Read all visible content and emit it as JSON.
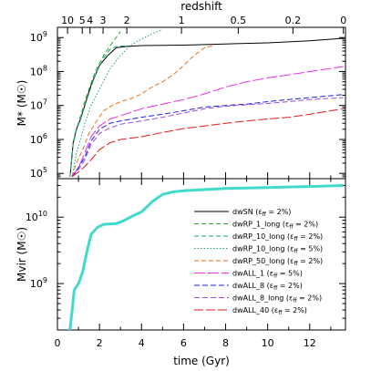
{
  "chart_data": [
    {
      "type": "line",
      "panel": "top",
      "ylabel": "M* (M☉)",
      "yscale": "log",
      "xlim": [
        0,
        13.7
      ],
      "ylim": [
        70000,
        2000000000
      ],
      "yticks": [
        {
          "value": 100000,
          "label": "10",
          "exp": "5"
        },
        {
          "value": 1000000,
          "label": "10",
          "exp": "6"
        },
        {
          "value": 10000000,
          "label": "10",
          "exp": "7"
        },
        {
          "value": 100000000,
          "label": "10",
          "exp": "8"
        },
        {
          "value": 1000000000,
          "label": "10",
          "exp": "9"
        }
      ],
      "top_axis": {
        "label": "redshift",
        "ticks": [
          {
            "label": "10",
            "time": 0.48
          },
          {
            "label": "5",
            "time": 1.18
          },
          {
            "label": "4",
            "time": 1.55
          },
          {
            "label": "3",
            "time": 2.17
          },
          {
            "label": "2",
            "time": 3.3
          },
          {
            "label": "1",
            "time": 5.9
          },
          {
            "label": "0.5",
            "time": 8.6
          },
          {
            "label": "0.2",
            "time": 11.2
          },
          {
            "label": "0",
            "time": 13.6
          }
        ]
      },
      "series": [
        {
          "color": "#000000",
          "dash": "",
          "width": 1.0,
          "points": [
            [
              0.6,
              80000
            ],
            [
              0.75,
              800000
            ],
            [
              0.9,
              2000000
            ],
            [
              1.1,
              4000000
            ],
            [
              1.3,
              10000000
            ],
            [
              1.6,
              40000000
            ],
            [
              2.0,
              150000000
            ],
            [
              2.4,
              300000000
            ],
            [
              2.8,
              500000000
            ],
            [
              3.3,
              550000000
            ],
            [
              4.0,
              580000000
            ],
            [
              6.0,
              600000000
            ],
            [
              8.0,
              650000000
            ],
            [
              10.0,
              700000000
            ],
            [
              12.0,
              800000000
            ],
            [
              13.6,
              950000000
            ]
          ]
        },
        {
          "color": "#2ca02c",
          "dash": "5,3",
          "width": 1.0,
          "points": [
            [
              0.6,
              80000
            ],
            [
              0.75,
              800000
            ],
            [
              0.9,
              2000000
            ],
            [
              1.1,
              5000000
            ],
            [
              1.4,
              20000000
            ],
            [
              1.8,
              100000000
            ],
            [
              2.2,
              300000000
            ],
            [
              2.6,
              700000000
            ],
            [
              3.0,
              1500000000
            ]
          ]
        },
        {
          "color": "#1aa085",
          "dash": "5,3",
          "width": 1.0,
          "points": [
            [
              0.6,
              80000
            ],
            [
              0.75,
              700000
            ],
            [
              0.9,
              1800000
            ],
            [
              1.1,
              4000000
            ],
            [
              1.4,
              15000000
            ],
            [
              1.8,
              80000000
            ],
            [
              2.2,
              250000000
            ],
            [
              2.5,
              450000000
            ],
            [
              2.8,
              550000000
            ],
            [
              3.2,
              570000000
            ]
          ]
        },
        {
          "color": "#1aa085",
          "dash": "1.5,2",
          "width": 1.0,
          "points": [
            [
              0.7,
              80000
            ],
            [
              0.9,
              400000
            ],
            [
              1.1,
              1000000
            ],
            [
              1.3,
              3000000
            ],
            [
              1.6,
              10000000
            ],
            [
              2.0,
              30000000
            ],
            [
              2.5,
              120000000
            ],
            [
              3.0,
              300000000
            ],
            [
              3.5,
              600000000
            ],
            [
              4.0,
              900000000
            ],
            [
              4.5,
              1300000000
            ],
            [
              5.0,
              1700000000
            ]
          ]
        },
        {
          "color": "#e0701a",
          "dash": "5,3",
          "width": 1.0,
          "points": [
            [
              0.7,
              80000
            ],
            [
              0.9,
              200000
            ],
            [
              1.2,
              500000
            ],
            [
              1.5,
              1500000
            ],
            [
              1.8,
              3000000
            ],
            [
              2.2,
              7000000
            ],
            [
              2.6,
              10000000
            ],
            [
              3.0,
              13000000
            ],
            [
              3.5,
              16000000
            ],
            [
              4.0,
              22000000
            ],
            [
              4.5,
              35000000
            ],
            [
              5.0,
              50000000
            ],
            [
              5.5,
              80000000
            ],
            [
              6.0,
              150000000
            ],
            [
              6.5,
              300000000
            ],
            [
              7.0,
              500000000
            ],
            [
              7.5,
              600000000
            ]
          ]
        },
        {
          "color": "#e62ee6",
          "dash": "12,3",
          "width": 1.0,
          "points": [
            [
              0.7,
              80000
            ],
            [
              1.0,
              150000
            ],
            [
              1.3,
              400000
            ],
            [
              1.6,
              1200000
            ],
            [
              2.0,
              2500000
            ],
            [
              2.5,
              4000000
            ],
            [
              3.0,
              5000000
            ],
            [
              4.0,
              8000000
            ],
            [
              5.0,
              11000000
            ],
            [
              6.0,
              15000000
            ],
            [
              7.0,
              22000000
            ],
            [
              8.0,
              35000000
            ],
            [
              9.0,
              50000000
            ],
            [
              10.0,
              65000000
            ],
            [
              11.0,
              80000000
            ],
            [
              12.0,
              100000000
            ],
            [
              13.6,
              140000000
            ]
          ]
        },
        {
          "color": "#1f1fe6",
          "dash": "6,3",
          "width": 1.0,
          "points": [
            [
              0.7,
              80000
            ],
            [
              1.0,
              150000
            ],
            [
              1.3,
              300000
            ],
            [
              1.6,
              900000
            ],
            [
              2.0,
              2000000
            ],
            [
              2.5,
              3000000
            ],
            [
              3.0,
              3500000
            ],
            [
              4.0,
              4500000
            ],
            [
              5.0,
              5500000
            ],
            [
              6.0,
              7000000
            ],
            [
              7.0,
              9000000
            ],
            [
              8.0,
              10000000
            ],
            [
              9.0,
              11000000
            ],
            [
              10.0,
              13000000
            ],
            [
              11.0,
              15000000
            ],
            [
              12.0,
              17000000
            ],
            [
              13.6,
              21000000
            ]
          ]
        },
        {
          "color": "#9b4de0",
          "dash": "6,3",
          "width": 1.0,
          "points": [
            [
              0.7,
              80000
            ],
            [
              1.0,
              130000
            ],
            [
              1.3,
              250000
            ],
            [
              1.6,
              700000
            ],
            [
              2.0,
              1500000
            ],
            [
              2.5,
              2200000
            ],
            [
              3.0,
              2800000
            ],
            [
              4.0,
              3500000
            ],
            [
              5.0,
              4500000
            ],
            [
              6.0,
              6000000
            ],
            [
              7.0,
              8000000
            ],
            [
              8.0,
              9500000
            ],
            [
              9.0,
              10500000
            ],
            [
              10.0,
              11500000
            ],
            [
              11.0,
              13000000
            ],
            [
              12.0,
              15000000
            ],
            [
              13.6,
              17000000
            ]
          ]
        },
        {
          "color": "#e61a1a",
          "dash": "10,3",
          "width": 1.0,
          "points": [
            [
              0.7,
              80000
            ],
            [
              1.0,
              110000
            ],
            [
              1.3,
              160000
            ],
            [
              1.6,
              250000
            ],
            [
              2.0,
              500000
            ],
            [
              2.5,
              800000
            ],
            [
              3.0,
              1000000
            ],
            [
              4.0,
              1200000
            ],
            [
              5.0,
              1600000
            ],
            [
              6.0,
              2100000
            ],
            [
              7.0,
              2500000
            ],
            [
              8.0,
              3000000
            ],
            [
              9.0,
              3500000
            ],
            [
              10.0,
              4000000
            ],
            [
              11.0,
              4500000
            ],
            [
              12.0,
              5500000
            ],
            [
              13.0,
              7000000
            ],
            [
              13.6,
              8000000
            ]
          ]
        }
      ]
    },
    {
      "type": "line",
      "panel": "bottom",
      "xlabel": "time (Gyr)",
      "ylabel": "Mvir (M☉)",
      "yscale": "log",
      "xlim": [
        0,
        13.7
      ],
      "ylim": [
        200000000,
        38000000000
      ],
      "xticks": [
        0,
        2,
        4,
        6,
        8,
        10,
        12
      ],
      "yticks": [
        {
          "value": 1000000000,
          "label": "10",
          "exp": "9"
        },
        {
          "value": 10000000000,
          "label": "10",
          "exp": "10"
        }
      ],
      "series": [
        {
          "color": "#40d9cc",
          "width": 3.0,
          "points": [
            [
              0.5,
              120000000
            ],
            [
              0.6,
              200000000
            ],
            [
              0.8,
              800000000
            ],
            [
              1.0,
              1000000000
            ],
            [
              1.2,
              1500000000
            ],
            [
              1.4,
              3000000000
            ],
            [
              1.6,
              5500000000
            ],
            [
              1.9,
              7000000000
            ],
            [
              2.2,
              7800000000
            ],
            [
              2.8,
              8000000000
            ],
            [
              3.2,
              9000000000
            ],
            [
              3.6,
              10500000000
            ],
            [
              4.0,
              12000000000
            ],
            [
              4.5,
              17000000000
            ],
            [
              5.0,
              22000000000
            ],
            [
              5.5,
              24000000000
            ],
            [
              6.0,
              25000000000
            ],
            [
              7.0,
              26000000000
            ],
            [
              8.0,
              27000000000
            ],
            [
              9.0,
              27500000000
            ],
            [
              10.0,
              28000000000
            ],
            [
              11.0,
              28500000000
            ],
            [
              12.0,
              29000000000
            ],
            [
              13.6,
              30000000000
            ]
          ]
        }
      ]
    }
  ],
  "legend": [
    {
      "color": "#000000",
      "dash": "",
      "name": "dwSN (ε",
      "sub": "ff",
      "tail": " = 2%)"
    },
    {
      "color": "#2ca02c",
      "dash": "5,3",
      "name": "dwRP_1_long (ε",
      "sub": "ff",
      "tail": " = 2%)"
    },
    {
      "color": "#1aa085",
      "dash": "5,3",
      "name": "dwRP_10_long (ε",
      "sub": "ff",
      "tail": " = 2%)"
    },
    {
      "color": "#1aa085",
      "dash": "1.5,2",
      "name": "dwRP_10_long (ε",
      "sub": "ff",
      "tail": " = 5%)"
    },
    {
      "color": "#e0701a",
      "dash": "5,3",
      "name": "dwRP_50_long (ε",
      "sub": "ff",
      "tail": " = 2%)"
    },
    {
      "color": "#e62ee6",
      "dash": "12,3",
      "name": "dwALL_1 (ε",
      "sub": "ff",
      "tail": " = 5%)"
    },
    {
      "color": "#1f1fe6",
      "dash": "6,3",
      "name": "dwALL_8 (ε",
      "sub": "ff",
      "tail": " = 2%)"
    },
    {
      "color": "#9b4de0",
      "dash": "6,3",
      "name": "dwALL_8_long (ε",
      "sub": "ff",
      "tail": " = 2%)"
    },
    {
      "color": "#e61a1a",
      "dash": "10,3",
      "name": "dwALL_40 (ε",
      "sub": "ff",
      "tail": " = 2%)"
    }
  ]
}
